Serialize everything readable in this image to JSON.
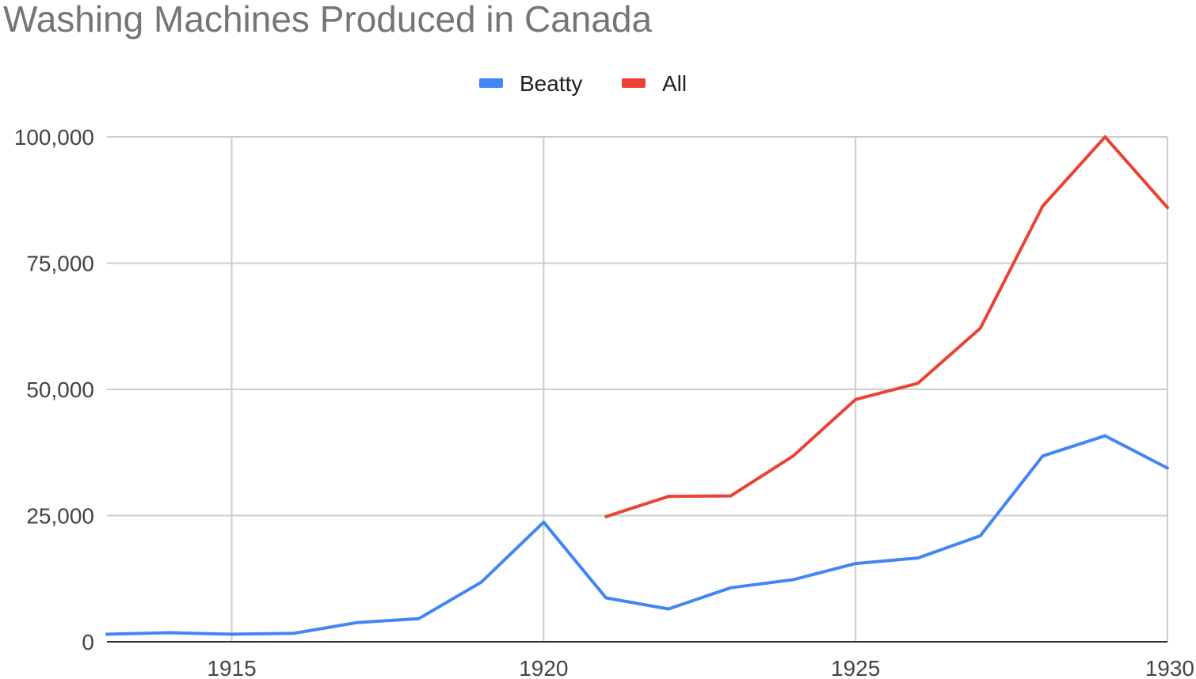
{
  "chart_data": {
    "type": "line",
    "title": "Washing Machines Produced in Canada",
    "xlabel": "",
    "ylabel": "",
    "xlim": [
      1913,
      1930
    ],
    "ylim": [
      0,
      100000
    ],
    "x_ticks": [
      1915,
      1920,
      1925,
      1930
    ],
    "y_ticks": [
      0,
      25000,
      50000,
      75000,
      100000
    ],
    "y_tick_labels": [
      "0",
      "25,000",
      "50,000",
      "75,000",
      "100,000"
    ],
    "grid": true,
    "legend_position": "top",
    "series": [
      {
        "name": "Beatty",
        "color": "#4285f4",
        "x": [
          1913,
          1914,
          1915,
          1916,
          1917,
          1918,
          1919,
          1920,
          1921,
          1922,
          1923,
          1924,
          1925,
          1926,
          1927,
          1928,
          1929,
          1930
        ],
        "values": [
          1500,
          1800,
          1500,
          1700,
          3800,
          4600,
          11800,
          23700,
          8700,
          6500,
          10700,
          12300,
          15500,
          16600,
          21000,
          36800,
          40800,
          34400
        ]
      },
      {
        "name": "All",
        "color": "#ea4335",
        "x": [
          1921,
          1922,
          1923,
          1924,
          1925,
          1926,
          1927,
          1928,
          1929,
          1930
        ],
        "values": [
          24800,
          28800,
          28900,
          36800,
          48000,
          51200,
          62100,
          86300,
          100000,
          86000
        ]
      }
    ]
  }
}
